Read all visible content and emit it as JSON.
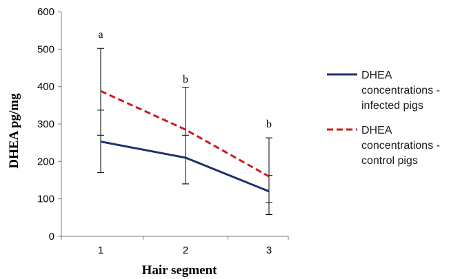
{
  "chart_data": {
    "type": "line",
    "title": "",
    "xlabel": "Hair segment",
    "ylabel": "DHEA pg/mg",
    "categories": [
      "1",
      "2",
      "3"
    ],
    "ylim": [
      0,
      600
    ],
    "yticks": [
      "0",
      "100",
      "200",
      "300",
      "400",
      "500",
      "600"
    ],
    "grid": false,
    "legend_position": "right",
    "series": [
      {
        "name": "DHEA concentrations - infected pigs",
        "legend_lines": [
          "DHEA",
          "concentrations -",
          "infected pigs"
        ],
        "color": "#1f2f6e",
        "style": "solid",
        "values": [
          253,
          210,
          120
        ],
        "error": [
          [
            170,
            337
          ],
          [
            140,
            270
          ],
          [
            58,
            163
          ]
        ]
      },
      {
        "name": "DHEA concentrations - control pigs",
        "legend_lines": [
          "DHEA",
          "concentrations -",
          "control pigs"
        ],
        "color": "#cc1b1b",
        "style": "dashed",
        "values": [
          388,
          285,
          160
        ],
        "error": [
          [
            270,
            502
          ],
          [
            140,
            398
          ],
          [
            90,
            263
          ]
        ]
      }
    ],
    "annotations": [
      {
        "category": "1",
        "text": "a"
      },
      {
        "category": "2",
        "text": "b"
      },
      {
        "category": "3",
        "text": "b"
      }
    ]
  }
}
